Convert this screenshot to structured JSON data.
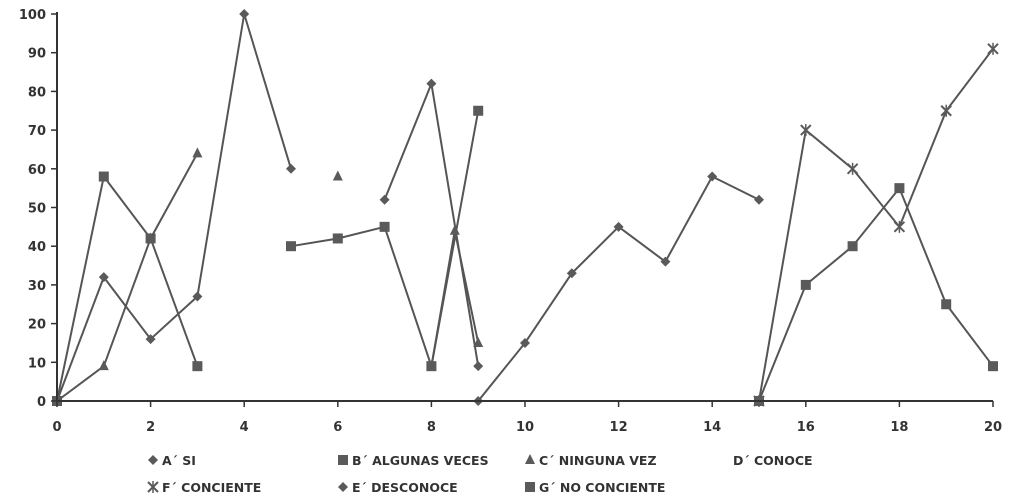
{
  "chart_data": {
    "type": "line",
    "title": "",
    "xlabel": "",
    "ylabel": "",
    "xlim": [
      0,
      20
    ],
    "ylim": [
      0,
      100
    ],
    "x_ticks": [
      0,
      2,
      4,
      6,
      8,
      10,
      12,
      14,
      16,
      18,
      20
    ],
    "y_ticks": [
      0,
      10,
      20,
      30,
      40,
      50,
      60,
      70,
      80,
      90,
      100
    ],
    "grid": false,
    "legend_position": "bottom",
    "series": [
      {
        "name": "A´ SI",
        "marker": "diamond",
        "points": [
          [
            0,
            0
          ],
          [
            1,
            32
          ],
          [
            2,
            16
          ],
          [
            3,
            27
          ],
          [
            4,
            100
          ],
          [
            5,
            60
          ]
        ]
      },
      {
        "name": "B´ ALGUNAS VECES",
        "marker": "square",
        "points": [
          [
            0,
            0
          ],
          [
            1,
            58
          ],
          [
            2,
            42
          ],
          [
            3,
            9
          ]
        ]
      },
      {
        "name": "C´ NINGUNA VEZ",
        "marker": "triangle",
        "points": [
          [
            0,
            0
          ],
          [
            1,
            9
          ],
          [
            2,
            42
          ],
          [
            3,
            64
          ]
        ]
      },
      {
        "name": "D´ CONOCE",
        "marker": "none",
        "points": [
          [
            6,
            58
          ]
        ]
      },
      {
        "name": "E´ DESCONOCE",
        "marker": "diamond",
        "points": [
          [
            7,
            52
          ],
          [
            8,
            82
          ],
          [
            9,
            9
          ]
        ]
      },
      {
        "name": "G´ NO CONCIENTE",
        "marker": "square",
        "points": [
          [
            5,
            40
          ],
          [
            6,
            42
          ],
          [
            7,
            45
          ],
          [
            8,
            9
          ],
          [
            9,
            75
          ]
        ]
      },
      {
        "name": "",
        "marker": "triangle",
        "points": [
          [
            8,
            9
          ],
          [
            8.5,
            44
          ],
          [
            9,
            15
          ]
        ]
      },
      {
        "name": "",
        "marker": "diamond",
        "points": [
          [
            9,
            0
          ],
          [
            10,
            15
          ],
          [
            11,
            33
          ],
          [
            12,
            45
          ],
          [
            13,
            36
          ],
          [
            14,
            58
          ],
          [
            15,
            52
          ]
        ]
      },
      {
        "name": "F´ CONCIENTE",
        "marker": "x",
        "points": [
          [
            15,
            0
          ],
          [
            16,
            70
          ],
          [
            17,
            60
          ],
          [
            18,
            45
          ],
          [
            19,
            75
          ],
          [
            20,
            91
          ]
        ]
      },
      {
        "name": "",
        "marker": "square",
        "points": [
          [
            15,
            0
          ],
          [
            16,
            30
          ],
          [
            17,
            40
          ],
          [
            18,
            55
          ],
          [
            19,
            25
          ],
          [
            20,
            9
          ]
        ]
      }
    ],
    "legend": [
      {
        "label": "A´ SI",
        "marker": "diamond"
      },
      {
        "label": "B´ ALGUNAS VECES",
        "marker": "square"
      },
      {
        "label": "C´ NINGUNA VEZ",
        "marker": "triangle"
      },
      {
        "label": "D´ CONOCE",
        "marker": "none"
      },
      {
        "label": "F´ CONCIENTE",
        "marker": "x"
      },
      {
        "label": "E´ DESCONOCE",
        "marker": "diamond"
      },
      {
        "label": "G´ NO CONCIENTE",
        "marker": "square"
      }
    ],
    "colors": {
      "line": "#555555",
      "marker": "#5a5a5a",
      "axis": "#333333"
    }
  }
}
